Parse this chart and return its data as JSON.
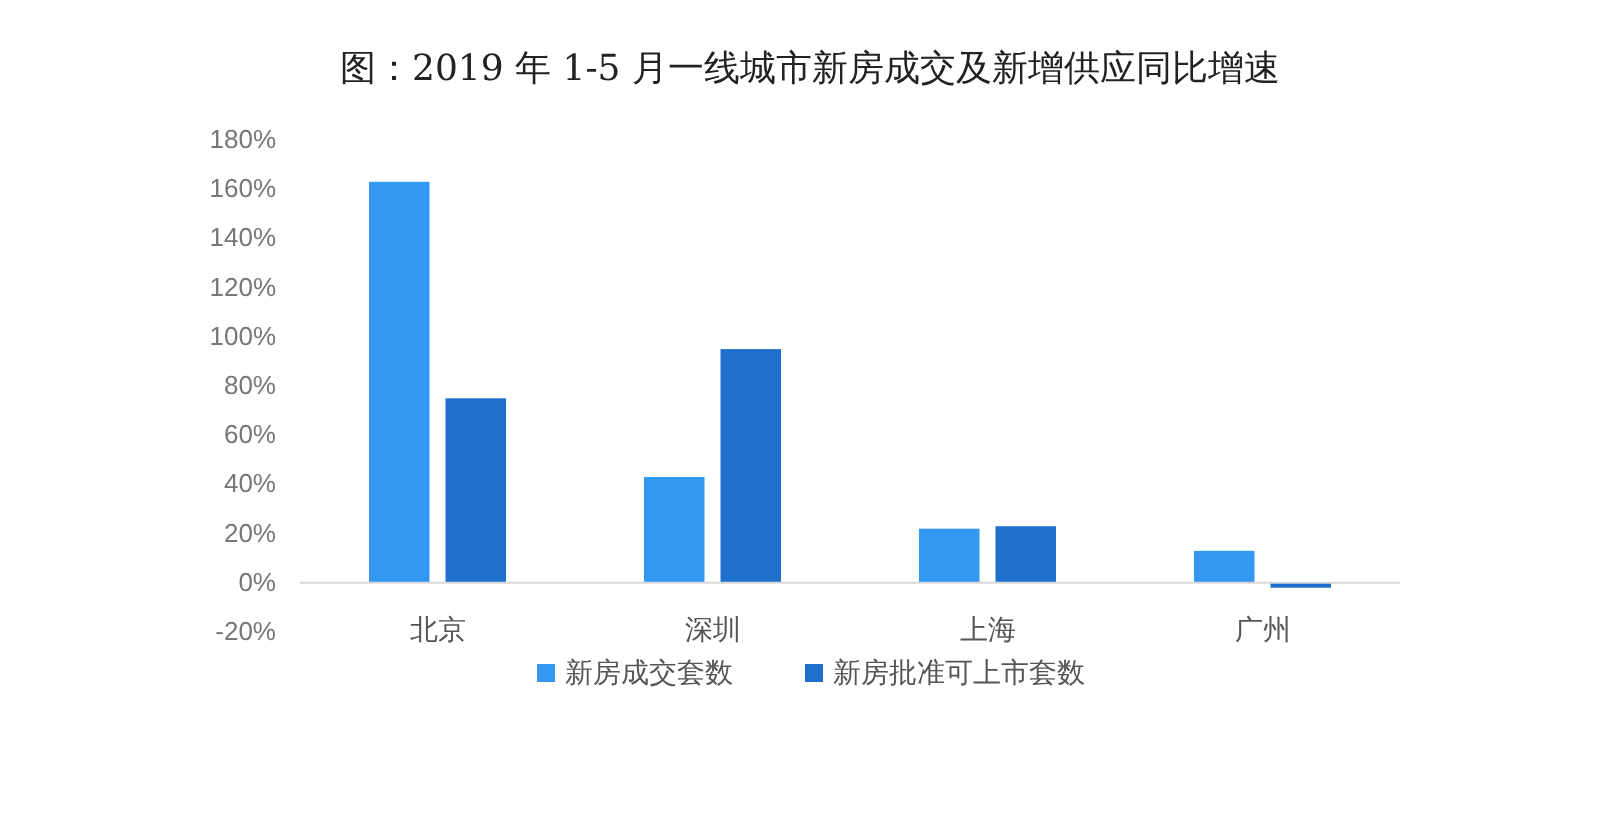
{
  "chart_data": {
    "type": "bar",
    "title": "图：2019 年 1-5 月一线城市新房成交及新增供应同比增速",
    "categories": [
      "北京",
      "深圳",
      "上海",
      "广州"
    ],
    "series": [
      {
        "name": "新房成交套数",
        "color": "#3399f0",
        "values": [
          163,
          43,
          22,
          13
        ]
      },
      {
        "name": "新房批准可上市套数",
        "color": "#1f6fcc",
        "values": [
          75,
          95,
          23,
          -2
        ]
      }
    ],
    "ylim": [
      -20,
      180
    ],
    "yticks": [
      {
        "value": -20,
        "label": "-20%"
      },
      {
        "value": 0,
        "label": "0%"
      },
      {
        "value": 20,
        "label": "20%"
      },
      {
        "value": 40,
        "label": "40%"
      },
      {
        "value": 60,
        "label": "60%"
      },
      {
        "value": 80,
        "label": "80%"
      },
      {
        "value": 100,
        "label": "100%"
      },
      {
        "value": 120,
        "label": "120%"
      },
      {
        "value": 140,
        "label": "140%"
      },
      {
        "value": 160,
        "label": "160%"
      },
      {
        "value": 180,
        "label": "180%"
      }
    ],
    "grid": false,
    "legend": "bottom"
  }
}
